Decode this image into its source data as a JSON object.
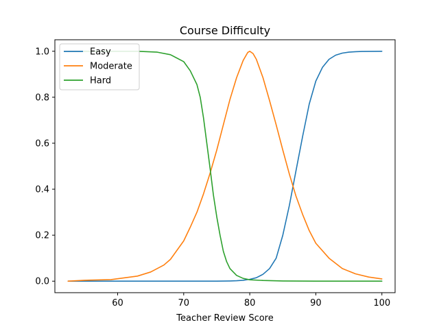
{
  "chart_data": {
    "type": "line",
    "title": "Course Difficulty",
    "xlabel": "Teacher Review Score",
    "ylabel": "",
    "xlim": [
      50.5,
      102.0
    ],
    "ylim": [
      -0.05,
      1.05
    ],
    "xticks": [
      60,
      70,
      80,
      90,
      100
    ],
    "yticks": [
      0.0,
      0.2,
      0.4,
      0.6,
      0.8,
      1.0
    ],
    "xtick_labels": [
      "60",
      "70",
      "80",
      "90",
      "100"
    ],
    "ytick_labels": [
      "0.0",
      "0.2",
      "0.4",
      "0.6",
      "0.8",
      "1.0"
    ],
    "grid": false,
    "legend_position": "top-left",
    "series": [
      {
        "name": "Easy",
        "color": "#1f77b4",
        "points": [
          [
            52.5,
            0.0
          ],
          [
            60,
            0.0
          ],
          [
            70,
            0.0
          ],
          [
            75,
            0.0
          ],
          [
            77,
            0.001
          ],
          [
            78,
            0.002
          ],
          [
            79,
            0.004
          ],
          [
            80,
            0.008
          ],
          [
            81,
            0.015
          ],
          [
            82,
            0.03
          ],
          [
            83,
            0.055
          ],
          [
            84,
            0.1
          ],
          [
            85,
            0.2
          ],
          [
            86,
            0.33
          ],
          [
            87,
            0.48
          ],
          [
            88,
            0.63
          ],
          [
            89,
            0.77
          ],
          [
            90,
            0.87
          ],
          [
            91,
            0.93
          ],
          [
            92,
            0.965
          ],
          [
            93,
            0.983
          ],
          [
            94,
            0.992
          ],
          [
            95,
            0.996
          ],
          [
            96,
            0.998
          ],
          [
            97,
            0.999
          ],
          [
            100,
            1.0
          ]
        ]
      },
      {
        "name": "Moderate",
        "color": "#ff7f0e",
        "points": [
          [
            52.5,
            0.0
          ],
          [
            55,
            0.004
          ],
          [
            59,
            0.007
          ],
          [
            63,
            0.022
          ],
          [
            65,
            0.04
          ],
          [
            67,
            0.07
          ],
          [
            68,
            0.095
          ],
          [
            69,
            0.135
          ],
          [
            70,
            0.175
          ],
          [
            71,
            0.235
          ],
          [
            72,
            0.3
          ],
          [
            73,
            0.38
          ],
          [
            74,
            0.47
          ],
          [
            75,
            0.57
          ],
          [
            76,
            0.68
          ],
          [
            77,
            0.79
          ],
          [
            78,
            0.885
          ],
          [
            79,
            0.96
          ],
          [
            79.7,
            0.995
          ],
          [
            80,
            1.0
          ],
          [
            80.5,
            0.99
          ],
          [
            81,
            0.965
          ],
          [
            82,
            0.885
          ],
          [
            83,
            0.785
          ],
          [
            84,
            0.68
          ],
          [
            85,
            0.57
          ],
          [
            86,
            0.465
          ],
          [
            87,
            0.37
          ],
          [
            88,
            0.29
          ],
          [
            89,
            0.22
          ],
          [
            90,
            0.165
          ],
          [
            92,
            0.1
          ],
          [
            94,
            0.055
          ],
          [
            96,
            0.032
          ],
          [
            98,
            0.018
          ],
          [
            100,
            0.01
          ]
        ]
      },
      {
        "name": "Hard",
        "color": "#2ca02c",
        "points": [
          [
            52.5,
            1.0
          ],
          [
            60,
            1.0
          ],
          [
            63,
            1.0
          ],
          [
            66,
            0.996
          ],
          [
            68,
            0.985
          ],
          [
            70,
            0.955
          ],
          [
            71,
            0.915
          ],
          [
            72,
            0.855
          ],
          [
            72.5,
            0.8
          ],
          [
            73,
            0.71
          ],
          [
            73.5,
            0.6
          ],
          [
            74,
            0.49
          ],
          [
            74.5,
            0.375
          ],
          [
            75,
            0.28
          ],
          [
            75.5,
            0.2
          ],
          [
            76,
            0.13
          ],
          [
            76.5,
            0.085
          ],
          [
            77,
            0.055
          ],
          [
            78,
            0.025
          ],
          [
            79,
            0.012
          ],
          [
            80,
            0.006
          ],
          [
            82,
            0.003
          ],
          [
            85,
            0.001
          ],
          [
            90,
            0.0
          ],
          [
            100,
            0.0
          ]
        ]
      }
    ]
  }
}
